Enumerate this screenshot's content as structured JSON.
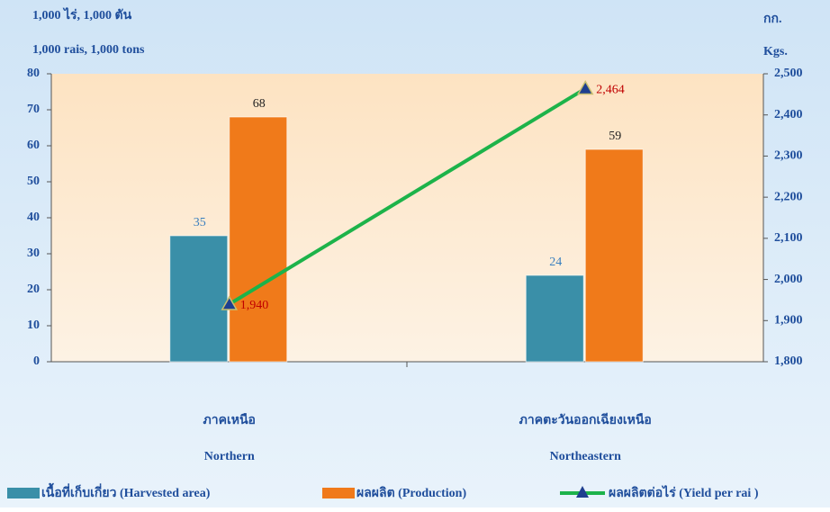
{
  "chart_data": {
    "type": "bar",
    "y_label": [
      "1,000 ไร่, 1,000 ตัน",
      "1,000 rais, 1,000 tons"
    ],
    "y2_label": [
      "กก.",
      "Kgs."
    ],
    "categories": [
      "ภาคเหนือ",
      "ภาคตะวันออกเฉียงเหนือ"
    ],
    "categories_en": [
      "Northern",
      "Northeastern"
    ],
    "series": [
      {
        "name": "เนื้อที่เก็บเกี่ยว (Harvested  area)",
        "type": "bar",
        "color": "#3a8fa8",
        "values": [
          35,
          24
        ]
      },
      {
        "name": "ผลผลิต (Production)",
        "type": "bar",
        "color": "#f07a1a",
        "values": [
          68,
          59
        ]
      },
      {
        "name": "ผลผลิตต่อไร่ (Yield per rai )",
        "type": "line",
        "axis": "y2",
        "color": "#1db34a",
        "marker_color": "#1f3f8f",
        "values": [
          1940,
          2464
        ],
        "value_labels": [
          "1,940",
          "2,464"
        ]
      }
    ],
    "ylim": [
      0,
      80
    ],
    "yticks": [
      0,
      10,
      20,
      30,
      40,
      50,
      60,
      70,
      80
    ],
    "y2lim": [
      1800,
      2500
    ],
    "y2ticks": [
      {
        "value": 1800,
        "label": "1,800"
      },
      {
        "value": 1900,
        "label": "1,900"
      },
      {
        "value": 2000,
        "label": "2,000"
      },
      {
        "value": 2100,
        "label": "2,100"
      },
      {
        "value": 2200,
        "label": "2,200"
      },
      {
        "value": 2300,
        "label": "2,300"
      },
      {
        "value": 2400,
        "label": "2,400"
      },
      {
        "value": 2500,
        "label": "2,500"
      }
    ]
  }
}
